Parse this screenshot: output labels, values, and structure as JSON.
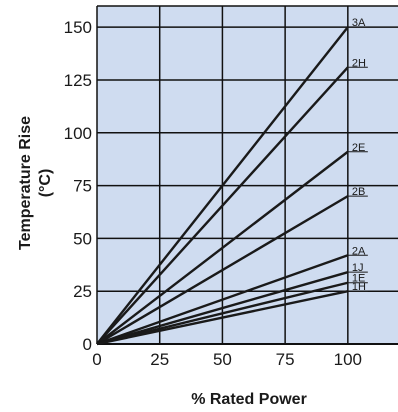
{
  "chart_data": {
    "type": "line",
    "title": "",
    "xlabel": "% Rated Power",
    "ylabel": "Temperature Rise",
    "ylabel_unit": "(°C)",
    "xlim": [
      0,
      120
    ],
    "ylim": [
      0,
      160
    ],
    "x_ticks": [
      0,
      25,
      50,
      75,
      100
    ],
    "y_ticks": [
      0,
      25,
      50,
      75,
      100,
      125,
      150
    ],
    "grid": true,
    "legend": "inline labels at line ends",
    "colors": {
      "plot_bg": "#cfdcf0",
      "grid": "#111111",
      "line": "#1a1a1a"
    },
    "series": [
      {
        "name": "3A",
        "x": [
          0,
          100
        ],
        "y": [
          0,
          150
        ]
      },
      {
        "name": "2H",
        "x": [
          0,
          100
        ],
        "y": [
          0,
          131
        ]
      },
      {
        "name": "2E",
        "x": [
          0,
          100
        ],
        "y": [
          0,
          91
        ]
      },
      {
        "name": "2B",
        "x": [
          0,
          100
        ],
        "y": [
          0,
          70
        ]
      },
      {
        "name": "2A",
        "x": [
          0,
          100
        ],
        "y": [
          0,
          42
        ]
      },
      {
        "name": "1J",
        "x": [
          0,
          100
        ],
        "y": [
          0,
          34
        ]
      },
      {
        "name": "1E",
        "x": [
          0,
          100
        ],
        "y": [
          0,
          29
        ]
      },
      {
        "name": "1H",
        "x": [
          0,
          100
        ],
        "y": [
          0,
          25
        ]
      }
    ]
  }
}
